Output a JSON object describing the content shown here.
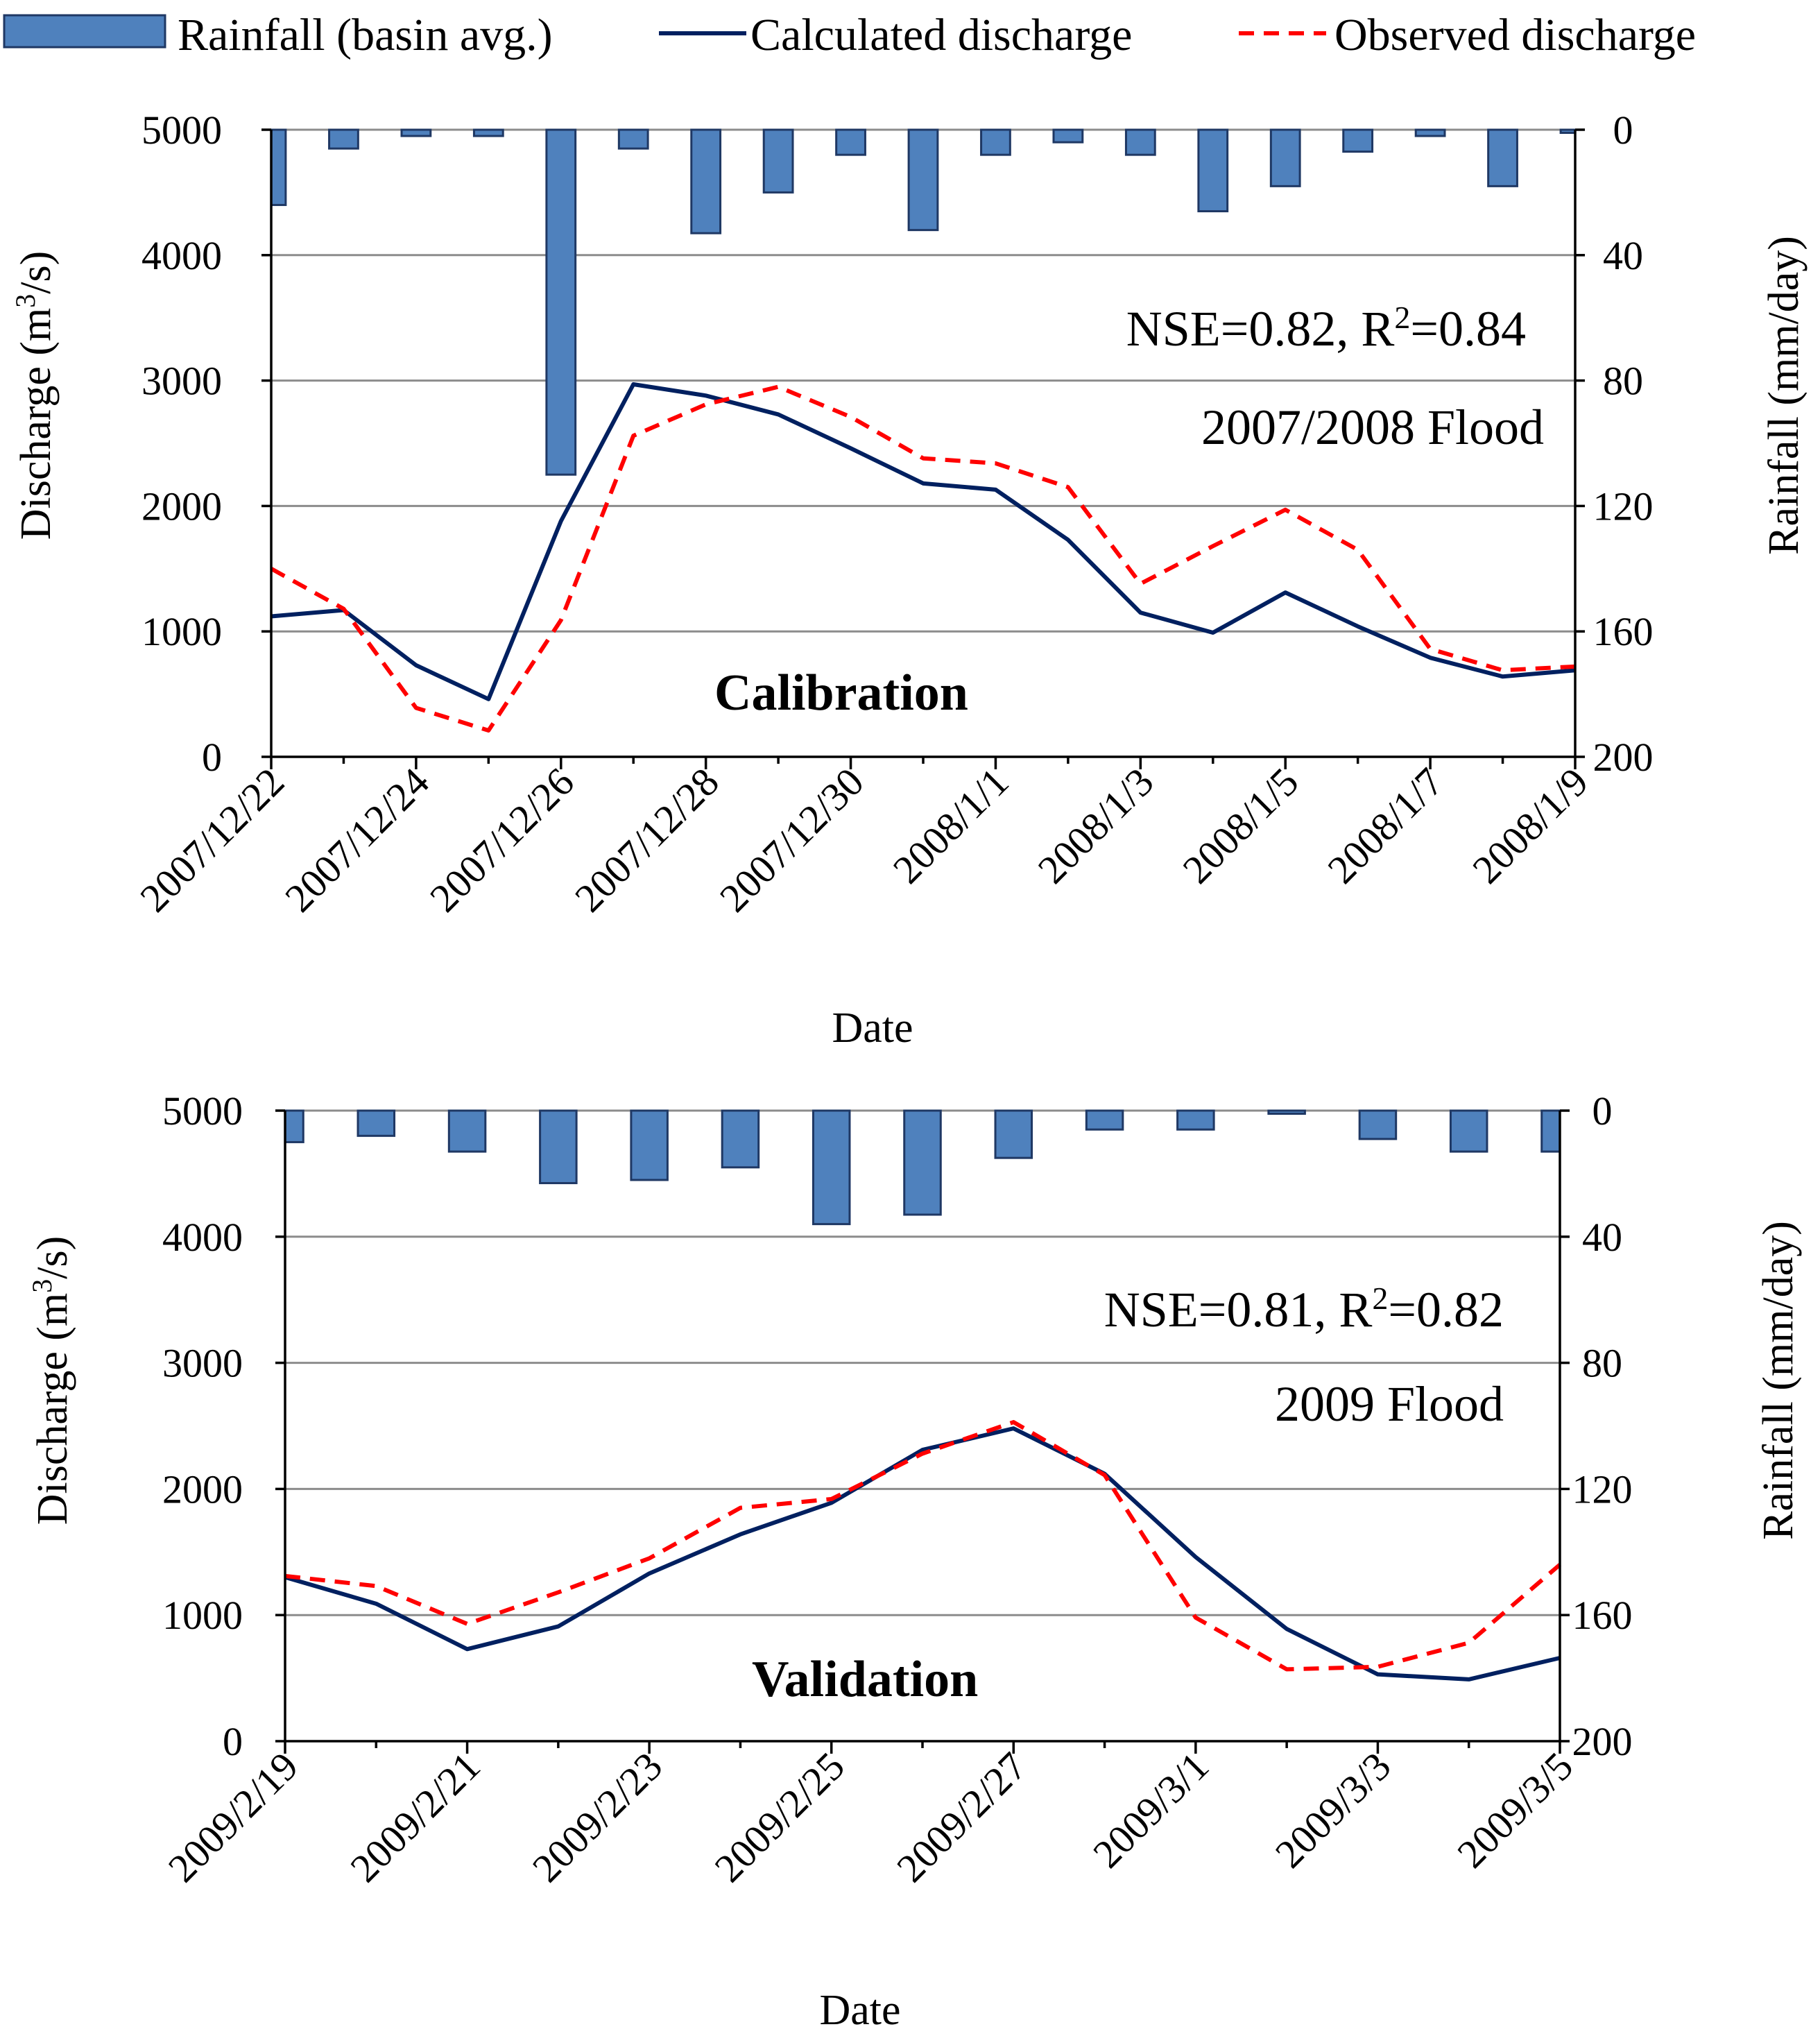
{
  "legend": {
    "rainfall": "Rainfall (basin avg.)",
    "calculated": "Calculated discharge",
    "observed": "Observed discharge"
  },
  "colors": {
    "rainfall_fill": "#4f81bd",
    "rainfall_edge": "#1f3864",
    "calculated": "#002060",
    "observed": "#ff0000",
    "grid": "#8c8c8c"
  },
  "chart_data": [
    {
      "type": "bar+line",
      "panel_label": "Calibration",
      "stats_prefix": "NSE=0.82, R",
      "stats_exponent": "2",
      "stats_suffix": "=0.84",
      "event_label": "2007/2008 Flood",
      "xlabel": "Date",
      "ylabel_prefix": "Discharge (m",
      "ylabel_exponent": "3",
      "ylabel_suffix": "/s)",
      "y2label": "Rainfall (mm/day)",
      "ylim": [
        0,
        5000
      ],
      "y2lim": [
        0,
        200
      ],
      "y2_inverted": true,
      "yticks": [
        "0",
        "1000",
        "2000",
        "3000",
        "4000",
        "5000"
      ],
      "y2ticks": [
        "0",
        "40",
        "80",
        "120",
        "160",
        "200"
      ],
      "dates": [
        "2007/12/22",
        "2007/12/23",
        "2007/12/24",
        "2007/12/25",
        "2007/12/26",
        "2007/12/27",
        "2007/12/28",
        "2007/12/29",
        "2007/12/30",
        "2007/12/31",
        "2008/1/1",
        "2008/1/2",
        "2008/1/3",
        "2008/1/4",
        "2008/1/5",
        "2008/1/6",
        "2008/1/7",
        "2008/1/8",
        "2008/1/9"
      ],
      "xtick_labels": [
        "2007/12/22",
        "2007/12/24",
        "2007/12/26",
        "2007/12/28",
        "2007/12/30",
        "2008/1/1",
        "2008/1/3",
        "2008/1/5",
        "2008/1/7",
        "2008/1/9"
      ],
      "series": [
        {
          "name": "Rainfall (basin avg.)",
          "axis": "right",
          "kind": "bar",
          "values": [
            24,
            6,
            2,
            2,
            110,
            6,
            33,
            20,
            8,
            32,
            8,
            4,
            8,
            26,
            18,
            7,
            2,
            18,
            1
          ]
        },
        {
          "name": "Calculated discharge",
          "axis": "left",
          "kind": "line",
          "values": [
            1120,
            1170,
            730,
            460,
            1880,
            2970,
            2880,
            2730,
            2460,
            2180,
            2130,
            1730,
            1150,
            990,
            1310,
            1040,
            790,
            640,
            690
          ]
        },
        {
          "name": "Observed discharge",
          "axis": "left",
          "kind": "dashed-line",
          "values": [
            1500,
            1180,
            390,
            210,
            1090,
            2560,
            2810,
            2950,
            2710,
            2380,
            2340,
            2150,
            1380,
            1680,
            1970,
            1650,
            860,
            690,
            720
          ]
        }
      ]
    },
    {
      "type": "bar+line",
      "panel_label": "Validation",
      "stats_prefix": "NSE=0.81, R",
      "stats_exponent": "2",
      "stats_suffix": "=0.82",
      "event_label": "2009 Flood",
      "xlabel": "Date",
      "ylabel_prefix": "Discharge (m",
      "ylabel_exponent": "3",
      "ylabel_suffix": "/s)",
      "y2label": "Rainfall (mm/day)",
      "ylim": [
        0,
        5000
      ],
      "y2lim": [
        0,
        200
      ],
      "y2_inverted": true,
      "yticks": [
        "0",
        "1000",
        "2000",
        "3000",
        "4000",
        "5000"
      ],
      "y2ticks": [
        "0",
        "40",
        "80",
        "120",
        "160",
        "200"
      ],
      "dates": [
        "2009/2/19",
        "2009/2/20",
        "2009/2/21",
        "2009/2/22",
        "2009/2/23",
        "2009/2/24",
        "2009/2/25",
        "2009/2/26",
        "2009/2/27",
        "2009/2/28",
        "2009/3/1",
        "2009/3/2",
        "2009/3/3",
        "2009/3/4",
        "2009/3/5"
      ],
      "xtick_labels": [
        "2009/2/19",
        "2009/2/21",
        "2009/2/23",
        "2009/2/25",
        "2009/2/27",
        "2009/3/1",
        "2009/3/3",
        "2009/3/5"
      ],
      "series": [
        {
          "name": "Rainfall (basin avg.)",
          "axis": "right",
          "kind": "bar",
          "values": [
            10,
            8,
            13,
            23,
            22,
            18,
            36,
            33,
            15,
            6,
            6,
            1,
            9,
            13,
            13
          ]
        },
        {
          "name": "Calculated discharge",
          "axis": "left",
          "kind": "line",
          "values": [
            1300,
            1090,
            730,
            910,
            1330,
            1640,
            1890,
            2310,
            2480,
            2120,
            1460,
            890,
            530,
            490,
            660
          ]
        },
        {
          "name": "Observed discharge",
          "axis": "left",
          "kind": "dashed-line",
          "values": [
            1310,
            1230,
            930,
            1180,
            1450,
            1850,
            1920,
            2280,
            2530,
            2110,
            980,
            570,
            590,
            780,
            1400
          ]
        }
      ]
    }
  ]
}
